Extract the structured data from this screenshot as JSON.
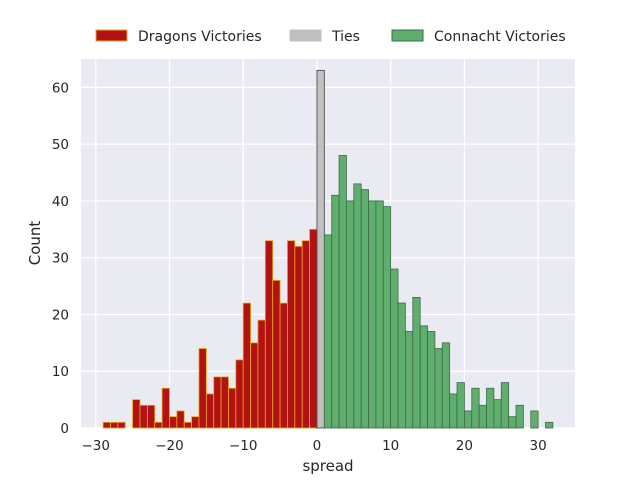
{
  "chart_data": {
    "type": "bar",
    "xlabel": "spread",
    "ylabel": "Count",
    "xlim": [
      -32,
      35
    ],
    "ylim": [
      0,
      65
    ],
    "xticks": [
      -30,
      -20,
      -10,
      0,
      10,
      20,
      30
    ],
    "yticks": [
      0,
      10,
      20,
      30,
      40,
      50,
      60
    ],
    "bin_width": 1,
    "grid": true,
    "legend_position": "top",
    "series": [
      {
        "name": "Dragons Victories",
        "fill": "#b31212",
        "edge": "#e6a817",
        "bins": [
          {
            "x": -29,
            "count": 1
          },
          {
            "x": -28,
            "count": 1
          },
          {
            "x": -27,
            "count": 1
          },
          {
            "x": -25,
            "count": 5
          },
          {
            "x": -24,
            "count": 4
          },
          {
            "x": -23,
            "count": 4
          },
          {
            "x": -22,
            "count": 1
          },
          {
            "x": -21,
            "count": 7
          },
          {
            "x": -20,
            "count": 2
          },
          {
            "x": -19,
            "count": 3
          },
          {
            "x": -18,
            "count": 1
          },
          {
            "x": -17,
            "count": 2
          },
          {
            "x": -16,
            "count": 14
          },
          {
            "x": -15,
            "count": 6
          },
          {
            "x": -14,
            "count": 9
          },
          {
            "x": -13,
            "count": 9
          },
          {
            "x": -12,
            "count": 7
          },
          {
            "x": -11,
            "count": 12
          },
          {
            "x": -10,
            "count": 22
          },
          {
            "x": -9,
            "count": 15
          },
          {
            "x": -8,
            "count": 19
          },
          {
            "x": -7,
            "count": 33
          },
          {
            "x": -6,
            "count": 26
          },
          {
            "x": -5,
            "count": 22
          },
          {
            "x": -4,
            "count": 33
          },
          {
            "x": -3,
            "count": 32
          },
          {
            "x": -2,
            "count": 33
          },
          {
            "x": -1,
            "count": 35
          }
        ]
      },
      {
        "name": "Ties",
        "fill": "#c0c0c0",
        "edge": "#404040",
        "bins": [
          {
            "x": 0,
            "count": 63
          }
        ]
      },
      {
        "name": "Connacht Victories",
        "fill": "#5fae6e",
        "edge": "#3c6b47",
        "bins": [
          {
            "x": 1,
            "count": 34
          },
          {
            "x": 2,
            "count": 41
          },
          {
            "x": 3,
            "count": 48
          },
          {
            "x": 4,
            "count": 40
          },
          {
            "x": 5,
            "count": 43
          },
          {
            "x": 6,
            "count": 42
          },
          {
            "x": 7,
            "count": 40
          },
          {
            "x": 8,
            "count": 40
          },
          {
            "x": 9,
            "count": 39
          },
          {
            "x": 10,
            "count": 28
          },
          {
            "x": 11,
            "count": 22
          },
          {
            "x": 12,
            "count": 17
          },
          {
            "x": 13,
            "count": 23
          },
          {
            "x": 14,
            "count": 18
          },
          {
            "x": 15,
            "count": 17
          },
          {
            "x": 16,
            "count": 14
          },
          {
            "x": 17,
            "count": 15
          },
          {
            "x": 18,
            "count": 6
          },
          {
            "x": 19,
            "count": 8
          },
          {
            "x": 20,
            "count": 3
          },
          {
            "x": 21,
            "count": 7
          },
          {
            "x": 22,
            "count": 4
          },
          {
            "x": 23,
            "count": 7
          },
          {
            "x": 24,
            "count": 5
          },
          {
            "x": 25,
            "count": 8
          },
          {
            "x": 26,
            "count": 2
          },
          {
            "x": 27,
            "count": 4
          },
          {
            "x": 29,
            "count": 3
          },
          {
            "x": 31,
            "count": 1
          }
        ]
      }
    ]
  },
  "colors": {
    "plot_background": "#eaeaf2",
    "grid": "#ffffff",
    "text": "#262626"
  }
}
